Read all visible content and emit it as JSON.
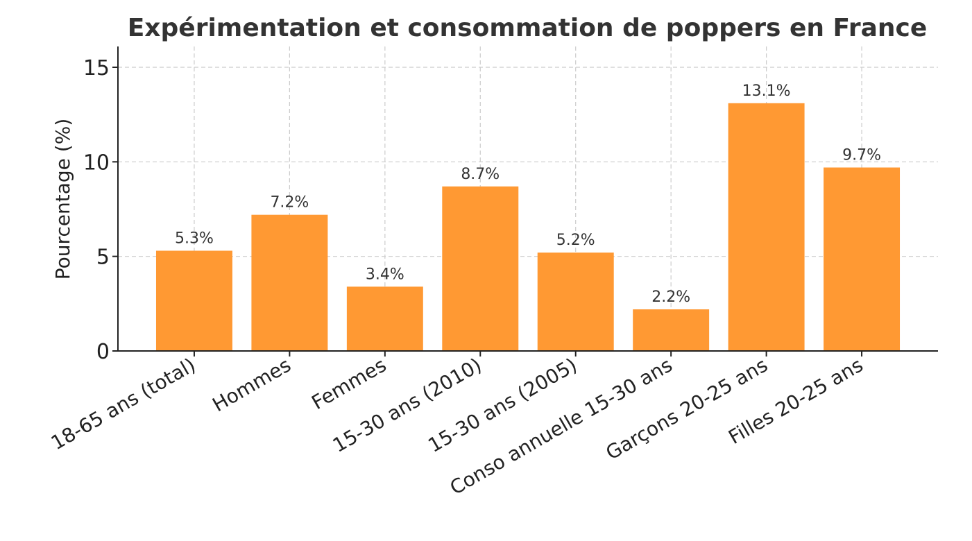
{
  "chart_data": {
    "type": "bar",
    "title": "Expérimentation et consommation de poppers en France",
    "xlabel": "",
    "ylabel": "Pourcentage (%)",
    "categories": [
      "18-65 ans (total)",
      "Hommes",
      "Femmes",
      "15-30 ans (2010)",
      "15-30 ans (2005)",
      "Conso annuelle 15-30 ans",
      "Garçons 20-25 ans",
      "Filles 20-25 ans"
    ],
    "values": [
      5.3,
      7.2,
      3.4,
      8.7,
      5.2,
      2.2,
      13.1,
      9.7
    ],
    "data_labels": [
      "5.3%",
      "7.2%",
      "3.4%",
      "8.7%",
      "5.2%",
      "2.2%",
      "13.1%",
      "9.7%"
    ],
    "ylim": [
      0,
      16.1
    ],
    "yticks": [
      0,
      5,
      10,
      15
    ],
    "grid": true,
    "bar_color": "#FF9933"
  }
}
